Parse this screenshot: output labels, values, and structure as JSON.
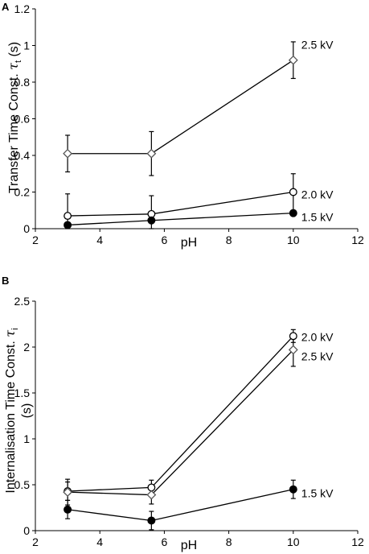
{
  "chart_data": [
    {
      "type": "line",
      "panel_label": "A",
      "title": "",
      "xlabel": "pH",
      "ylabel_main": "Transfer Time Const. ",
      "ylabel_symbol": "τ",
      "ylabel_sub": "t",
      "ylabel_unit": " (s)",
      "xlim": [
        2,
        12
      ],
      "ylim": [
        0,
        1.2
      ],
      "xticks": [
        "2",
        "4",
        "6",
        "8",
        "10",
        "12"
      ],
      "yticks": [
        "0",
        "0.2",
        "0.4",
        "0.6",
        "0.8",
        "1",
        "1.2"
      ],
      "x": [
        3,
        5.6,
        10
      ],
      "grid": false,
      "series": [
        {
          "name": "2.5 kV",
          "marker": "diamond-open",
          "values": [
            0.41,
            0.41,
            0.92
          ],
          "err": [
            0.1,
            0.12,
            0.1
          ]
        },
        {
          "name": "2.0 kV",
          "marker": "circle-open",
          "values": [
            0.07,
            0.08,
            0.2
          ],
          "err": [
            0.12,
            0.1,
            0.1
          ]
        },
        {
          "name": "1.5 kV",
          "marker": "circle-filled",
          "values": [
            0.02,
            0.045,
            0.085
          ],
          "err": [
            0,
            0,
            0
          ]
        }
      ]
    },
    {
      "type": "line",
      "panel_label": "B",
      "title": "",
      "xlabel": "pH",
      "ylabel_main": "Internalisation Time Const. ",
      "ylabel_symbol": "τ",
      "ylabel_sub": "i",
      "ylabel_unit": "(s)",
      "xlim": [
        2,
        12
      ],
      "ylim": [
        0,
        2.5
      ],
      "xticks": [
        "2",
        "4",
        "6",
        "8",
        "10",
        "12"
      ],
      "yticks": [
        "0",
        "0.5",
        "1",
        "1.5",
        "2",
        "2.5"
      ],
      "x": [
        3,
        5.6,
        10
      ],
      "grid": false,
      "series": [
        {
          "name": "2.0 kV",
          "marker": "circle-open",
          "values": [
            0.43,
            0.47,
            2.12
          ],
          "err": [
            0.1,
            0.08,
            0.07
          ]
        },
        {
          "name": "2.5 kV",
          "marker": "diamond-open",
          "values": [
            0.42,
            0.39,
            1.97
          ],
          "err": [
            0.14,
            0.1,
            0.18
          ]
        },
        {
          "name": "1.5 kV",
          "marker": "circle-filled",
          "values": [
            0.23,
            0.11,
            0.45
          ],
          "err": [
            0.1,
            0.1,
            0.1
          ]
        }
      ]
    }
  ]
}
